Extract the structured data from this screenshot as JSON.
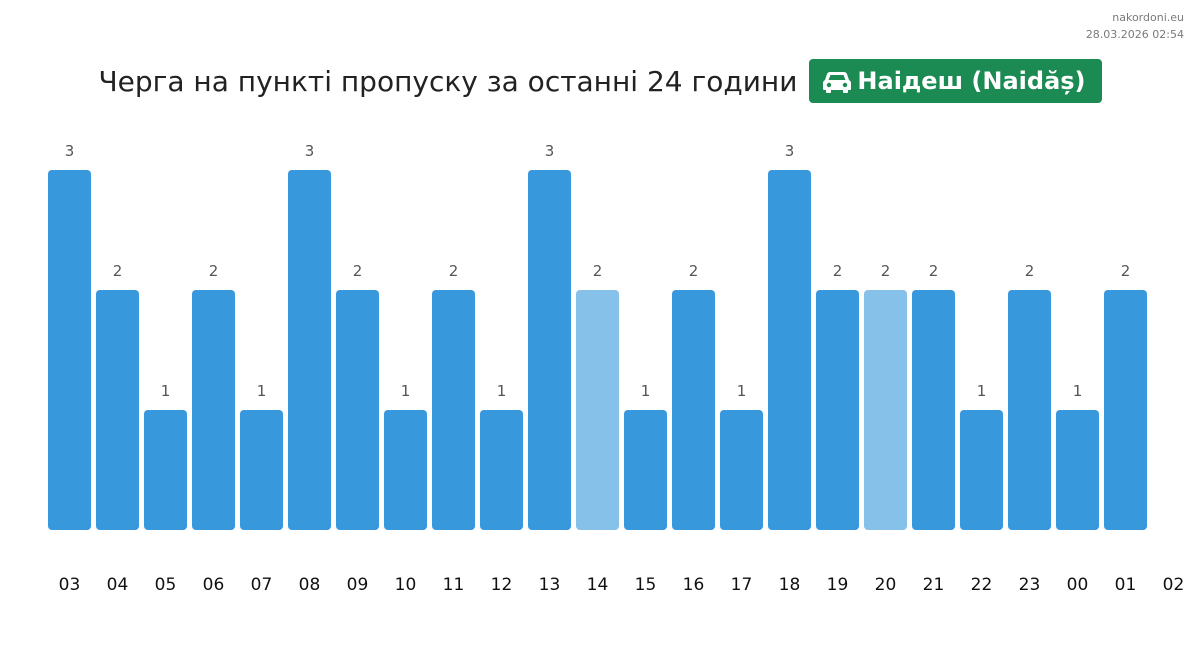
{
  "source": {
    "site": "nakordoni.eu",
    "timestamp": "28.03.2026 02:54"
  },
  "header": {
    "title": "Черга на пункті пропуску за останні 24 години",
    "checkpoint_name": "Наідеш (Naidăș)",
    "checkpoint_icon": "car-icon",
    "badge_color": "#1b8a53"
  },
  "chart_data": {
    "type": "bar",
    "title": "Черга на пункті пропуску за останні 24 години",
    "xlabel": "",
    "ylabel": "",
    "categories": [
      "03",
      "04",
      "05",
      "06",
      "07",
      "08",
      "09",
      "10",
      "11",
      "12",
      "13",
      "14",
      "15",
      "16",
      "17",
      "18",
      "19",
      "20",
      "21",
      "22",
      "23",
      "00",
      "01"
    ],
    "x_tick_labels": [
      "03",
      "04",
      "05",
      "06",
      "07",
      "08",
      "09",
      "10",
      "11",
      "12",
      "13",
      "14",
      "15",
      "16",
      "17",
      "18",
      "19",
      "20",
      "21",
      "22",
      "23",
      "00",
      "01",
      "02"
    ],
    "values": [
      3,
      2,
      1,
      2,
      1,
      3,
      2,
      1,
      2,
      1,
      3,
      2,
      1,
      2,
      1,
      3,
      2,
      2,
      2,
      1,
      2,
      1,
      2
    ],
    "highlighted": [
      false,
      false,
      false,
      false,
      false,
      false,
      false,
      false,
      false,
      false,
      false,
      true,
      false,
      false,
      false,
      false,
      false,
      true,
      false,
      false,
      false,
      false,
      false
    ],
    "ylim": [
      0,
      3
    ],
    "grid": false,
    "data_labels": true,
    "colors": {
      "bar": "#3798db",
      "bar_highlight": "#85c1e9"
    }
  }
}
